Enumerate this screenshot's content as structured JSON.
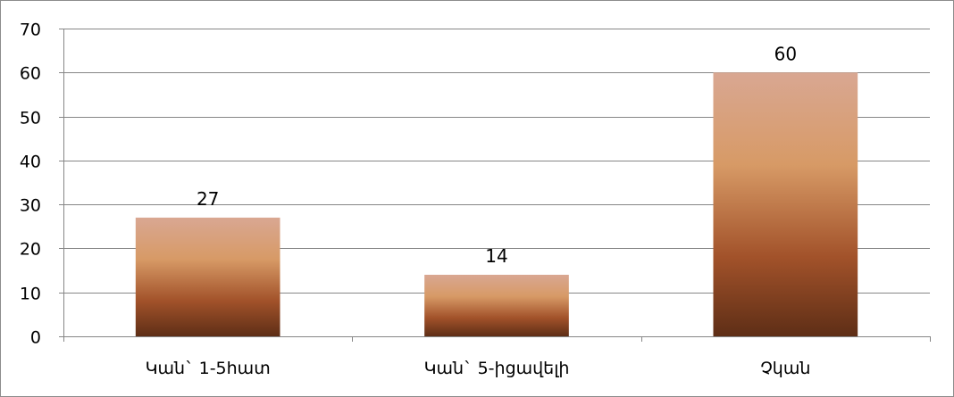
{
  "chart_data": {
    "type": "bar",
    "categories": [
      "Կան` 1-5հատ",
      "Կան` 5-իցավելի",
      "Չկան"
    ],
    "values": [
      27,
      14,
      60
    ],
    "data_labels": [
      "27",
      "14",
      "60"
    ],
    "title": "",
    "xlabel": "",
    "ylabel": "",
    "ylim": [
      0,
      70
    ],
    "yticks": [
      0,
      10,
      20,
      30,
      40,
      50,
      60,
      70
    ],
    "grid": true,
    "legend": "none",
    "colors": {
      "bar_top": "#d9a792",
      "bar_mid_light": "#d79a66",
      "bar_mid": "#a2522a",
      "bar_bottom": "#5e2e16",
      "gridline": "#868686",
      "axis": "#868686"
    }
  }
}
